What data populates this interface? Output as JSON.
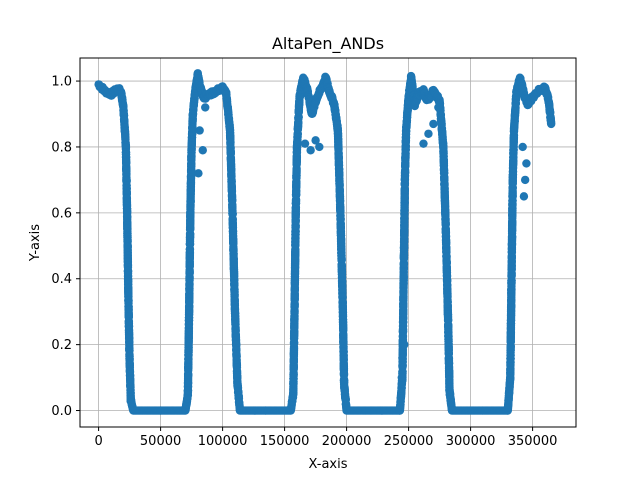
{
  "chart_data": {
    "type": "scatter",
    "title": "AltaPen_ANDs",
    "xlabel": "X-axis",
    "ylabel": "Y-axis",
    "xlim": [
      -15000,
      385000
    ],
    "ylim": [
      -0.05,
      1.07
    ],
    "x_ticks": [
      0,
      50000,
      100000,
      150000,
      200000,
      250000,
      300000,
      350000
    ],
    "y_ticks": [
      0.0,
      0.2,
      0.4,
      0.6,
      0.8,
      1.0
    ],
    "grid": true,
    "legend": "none",
    "series": [
      {
        "color": "#1f77b4",
        "marker": "circle",
        "profile": [
          [
            0,
            0.99
          ],
          [
            5000,
            0.97
          ],
          [
            10000,
            0.96
          ],
          [
            15000,
            0.975
          ],
          [
            18000,
            0.97
          ],
          [
            20000,
            0.92
          ],
          [
            22000,
            0.8
          ],
          [
            23000,
            0.6
          ],
          [
            24000,
            0.35
          ],
          [
            25000,
            0.15
          ],
          [
            26000,
            0.03
          ],
          [
            28000,
            0.0
          ],
          [
            50000,
            0.0
          ],
          [
            70000,
            0.0
          ],
          [
            72000,
            0.05
          ],
          [
            73000,
            0.3
          ],
          [
            74000,
            0.6
          ],
          [
            75000,
            0.8
          ],
          [
            76000,
            0.9
          ],
          [
            78000,
            0.97
          ],
          [
            80000,
            1.02
          ],
          [
            82000,
            0.98
          ],
          [
            85000,
            0.95
          ],
          [
            90000,
            0.96
          ],
          [
            95000,
            0.97
          ],
          [
            100000,
            0.98
          ],
          [
            103000,
            0.96
          ],
          [
            106000,
            0.85
          ],
          [
            108000,
            0.6
          ],
          [
            110000,
            0.3
          ],
          [
            112000,
            0.08
          ],
          [
            114000,
            0.0
          ],
          [
            135000,
            0.0
          ],
          [
            155000,
            0.0
          ],
          [
            157000,
            0.05
          ],
          [
            158000,
            0.3
          ],
          [
            159000,
            0.6
          ],
          [
            160000,
            0.8
          ],
          [
            162000,
            0.95
          ],
          [
            165000,
            1.01
          ],
          [
            168000,
            0.98
          ],
          [
            172000,
            0.9
          ],
          [
            176000,
            0.95
          ],
          [
            180000,
            0.98
          ],
          [
            183000,
            1.01
          ],
          [
            186000,
            0.97
          ],
          [
            190000,
            0.93
          ],
          [
            193000,
            0.85
          ],
          [
            195000,
            0.6
          ],
          [
            197000,
            0.3
          ],
          [
            198000,
            0.08
          ],
          [
            200000,
            0.0
          ],
          [
            220000,
            0.0
          ],
          [
            243000,
            0.0
          ],
          [
            245000,
            0.1
          ],
          [
            246000,
            0.4
          ],
          [
            247000,
            0.7
          ],
          [
            248000,
            0.85
          ],
          [
            250000,
            0.95
          ],
          [
            252000,
            1.01
          ],
          [
            255000,
            0.93
          ],
          [
            258000,
            0.96
          ],
          [
            262000,
            0.97
          ],
          [
            265000,
            0.94
          ],
          [
            270000,
            0.97
          ],
          [
            275000,
            0.94
          ],
          [
            278000,
            0.8
          ],
          [
            280000,
            0.55
          ],
          [
            282000,
            0.25
          ],
          [
            283000,
            0.06
          ],
          [
            285000,
            0.0
          ],
          [
            310000,
            0.0
          ],
          [
            330000,
            0.0
          ],
          [
            332000,
            0.1
          ],
          [
            333000,
            0.4
          ],
          [
            334000,
            0.7
          ],
          [
            335000,
            0.85
          ],
          [
            337000,
            0.97
          ],
          [
            340000,
            1.01
          ],
          [
            343000,
            0.96
          ],
          [
            346000,
            0.93
          ],
          [
            350000,
            0.95
          ],
          [
            355000,
            0.97
          ],
          [
            360000,
            0.98
          ],
          [
            363000,
            0.94
          ],
          [
            365000,
            0.87
          ]
        ],
        "outliers": [
          [
            80500,
            0.72
          ],
          [
            81500,
            0.85
          ],
          [
            84000,
            0.79
          ],
          [
            86000,
            0.92
          ],
          [
            166500,
            0.81
          ],
          [
            171000,
            0.79
          ],
          [
            175000,
            0.82
          ],
          [
            178000,
            0.8
          ],
          [
            245000,
            0.16
          ],
          [
            246500,
            0.2
          ],
          [
            244500,
            0.1
          ],
          [
            262000,
            0.81
          ],
          [
            266000,
            0.84
          ],
          [
            270000,
            0.87
          ],
          [
            274000,
            0.92
          ],
          [
            343000,
            0.65
          ],
          [
            344000,
            0.7
          ],
          [
            345000,
            0.75
          ],
          [
            342000,
            0.8
          ]
        ]
      }
    ]
  }
}
